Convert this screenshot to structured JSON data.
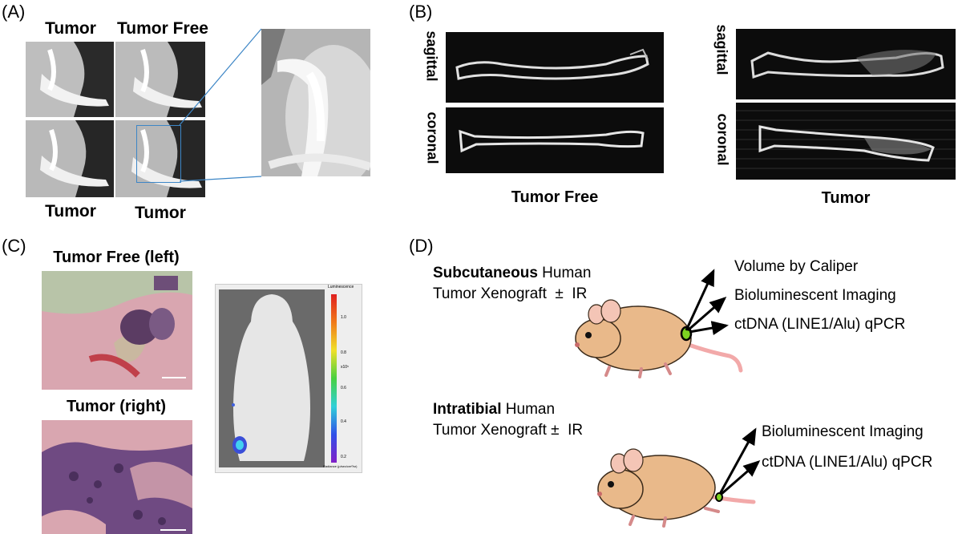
{
  "panelA": {
    "letter": "(A)",
    "top_left_label": "Tumor",
    "top_right_label": "Tumor Free",
    "bottom_left_label": "Tumor",
    "bottom_right_label": "Tumor"
  },
  "panelB": {
    "letter": "(B)",
    "tumor_free": {
      "sagittal": "sagittal",
      "coronal": "coronal",
      "caption": "Tumor Free"
    },
    "tumor": {
      "sagittal": "sagittal",
      "coronal": "coronal",
      "caption": "Tumor"
    }
  },
  "panelC": {
    "letter": "(C)",
    "top_label": "Tumor Free (left)",
    "bottom_label": "Tumor (right)",
    "colorbar_top": "Luminescence",
    "colorbar_exp": "x10⁵",
    "colorbar_bottom": "Radiance (p/sec/cm²/sr)",
    "colorbar_ticks": [
      "1.0",
      "0.8",
      "0.6",
      "0.4",
      "0.2"
    ]
  },
  "panelD": {
    "letter": "(D)",
    "subq_bold": "Subcutaneous",
    "subq_rest": " Human",
    "subq_line2": "Tumor Xenograft  ±  IR",
    "subq_outcomes": [
      "Volume by Caliper",
      "Bioluminescent Imaging",
      "ctDNA (LINE1/Alu) qPCR"
    ],
    "it_bold": "Intratibial",
    "it_rest": " Human",
    "it_line2": "Tumor Xenograft ±  IR",
    "it_outcomes": [
      "Bioluminescent Imaging",
      "ctDNA (LINE1/Alu) qPCR"
    ]
  },
  "colors": {
    "mouse_fur": "#e9b98a",
    "mouse_outline": "#3a2a1a",
    "mouse_tail": "#f2a9a9",
    "tumor_dot": "#7ed321",
    "zoom_box": "#3d86c6",
    "histo_pink": "#d9a6b0",
    "histo_purple": "#6f4a82"
  }
}
